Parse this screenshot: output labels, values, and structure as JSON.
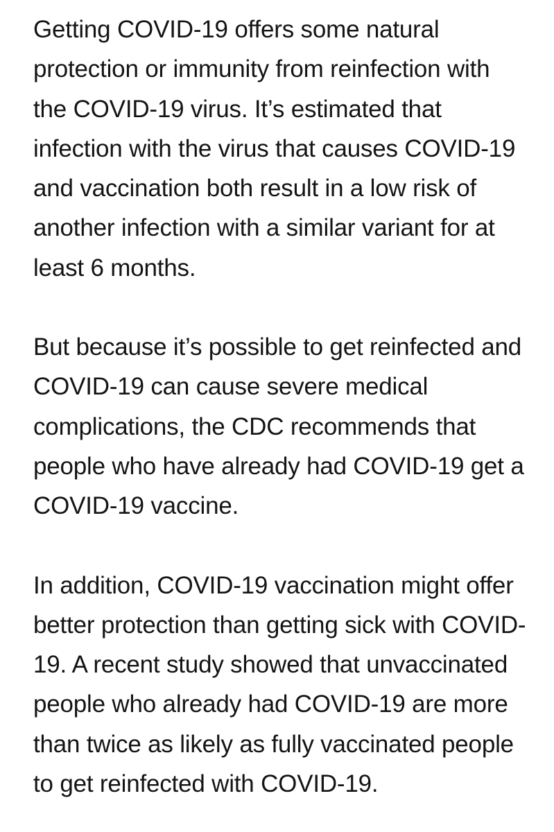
{
  "article": {
    "paragraphs": [
      "Getting COVID-19 offers some natural protection or immunity from reinfection with the COVID-19 virus. It’s estimated that infection with the virus that causes COVID-19 and vaccination both result in a low risk of another infection with a similar variant for at least 6 months.",
      "But because it’s possible to get reinfected and COVID-19 can cause severe medical complications, the CDC recommends that people who have already had COVID-19 get a COVID-19 vaccine.",
      "In addition, COVID-19 vaccination might offer better protection than getting sick with COVID-19. A recent study showed that unvaccinated people who already had COVID-19 are more than twice as likely as fully vaccinated people to get reinfected with COVID-19."
    ]
  }
}
